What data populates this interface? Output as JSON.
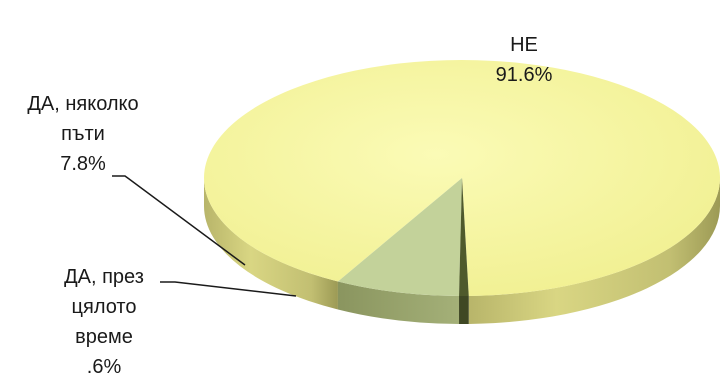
{
  "chart_data": {
    "type": "pie",
    "style": "3d",
    "title": "",
    "slices": [
      {
        "label_lines": [
          "НЕ"
        ],
        "value_label": "91.6%",
        "value": 91.6,
        "color": "#f5f59a"
      },
      {
        "label_lines": [
          "ДА, няколко",
          "пъти"
        ],
        "value_label": "7.8%",
        "value": 7.8,
        "color": "#c3d29a"
      },
      {
        "label_lines": [
          "ДА, през",
          "цялото",
          "време"
        ],
        "value_label": ".6%",
        "value": 0.6,
        "color": "#4f5a2c"
      }
    ]
  }
}
